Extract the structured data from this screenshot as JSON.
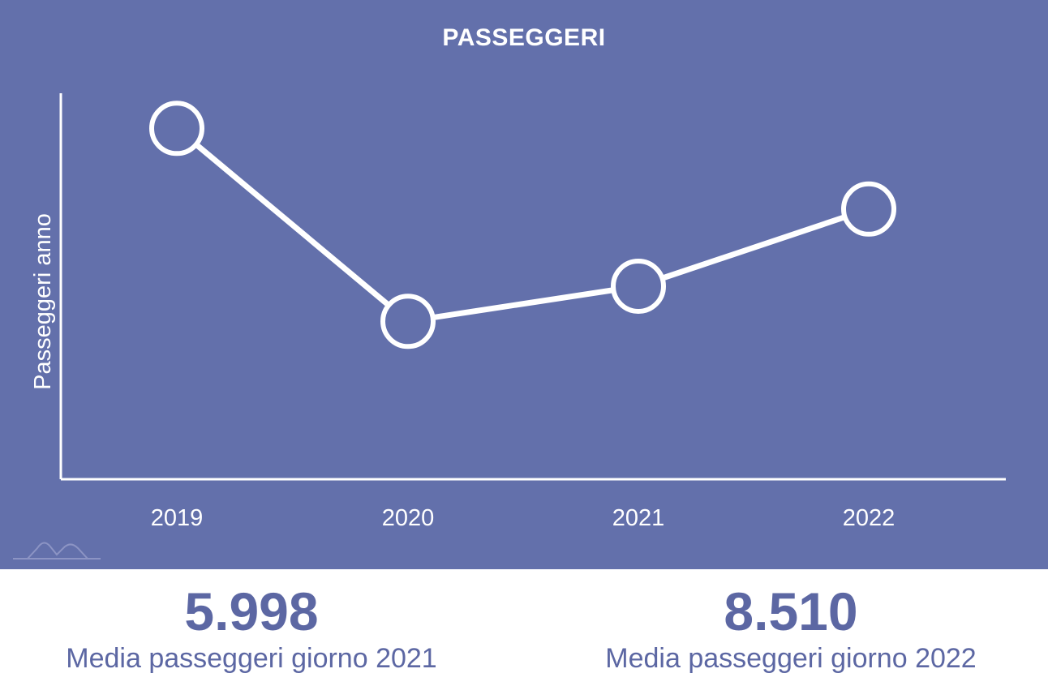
{
  "chart_data": {
    "type": "line",
    "title": "PASSEGGERI",
    "xlabel": "",
    "ylabel": "Passeggeri anno",
    "categories": [
      "2019",
      "2020",
      "2021",
      "2022"
    ],
    "series": [
      {
        "values": [
          100,
          45,
          55,
          77
        ]
      }
    ],
    "ylim": [
      0,
      110
    ],
    "grid": false,
    "legend": "none"
  },
  "stats": [
    {
      "value": "5.998",
      "label": "Media passeggeri giorno 2021"
    },
    {
      "value": "8.510",
      "label": "Media passeggeri giorno 2022"
    }
  ],
  "colors": {
    "background": "#6370ab",
    "line": "#ffffff",
    "stat_text": "#5c67a3"
  },
  "logo": {
    "icon": "mountain-logo-icon"
  }
}
